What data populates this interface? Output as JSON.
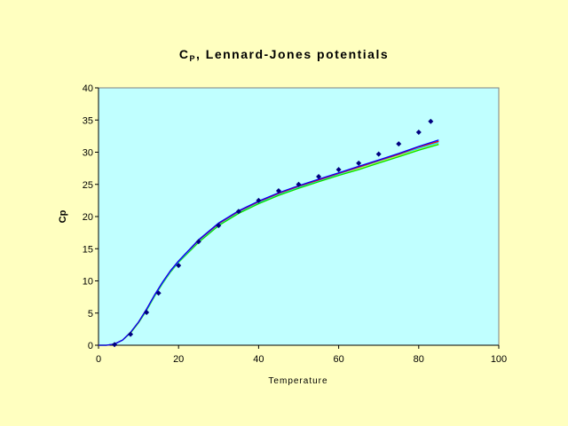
{
  "chart_data": {
    "type": "scatter",
    "title": "Cp, Lennard-Jones potentials",
    "title_main": "C",
    "title_sub": "P",
    "title_rest": ", Lennard-Jones potentials",
    "xlabel": "Temperature",
    "ylabel": "Cp",
    "xlim": [
      0,
      100
    ],
    "ylim": [
      0,
      40
    ],
    "xticks": [
      0,
      20,
      40,
      60,
      80,
      100
    ],
    "yticks": [
      0,
      5,
      10,
      15,
      20,
      25,
      30,
      35,
      40
    ],
    "grid": false,
    "colors": {
      "background": "#ffffc0",
      "plot": "#c0ffff",
      "points": "#000080"
    },
    "points": {
      "x": [
        4,
        8,
        12,
        15,
        20,
        25,
        30,
        35,
        40,
        45,
        50,
        55,
        60,
        65,
        70,
        75,
        80,
        83
      ],
      "y": [
        0.1,
        1.7,
        5.1,
        8.1,
        12.4,
        16.1,
        18.6,
        20.8,
        22.5,
        24.0,
        25.0,
        26.2,
        27.3,
        28.3,
        29.7,
        31.3,
        33.1,
        34.8
      ]
    },
    "curve_x": [
      0,
      2,
      4,
      6,
      8,
      10,
      12,
      14,
      16,
      18,
      20,
      25,
      30,
      35,
      40,
      45,
      50,
      55,
      60,
      65,
      70,
      75,
      80,
      85
    ],
    "series": [
      {
        "name": "yellow",
        "color": "#ffff00",
        "y": [
          0,
          0,
          0.2,
          0.8,
          1.9,
          3.5,
          5.4,
          7.6,
          9.6,
          11.4,
          12.9,
          16.0,
          18.6,
          20.5,
          22.0,
          23.3,
          24.4,
          25.4,
          26.4,
          27.4,
          28.4,
          29.4,
          30.4,
          31.3
        ]
      },
      {
        "name": "green",
        "color": "#00e000",
        "y": [
          0,
          0,
          0.2,
          0.8,
          1.9,
          3.5,
          5.4,
          7.6,
          9.6,
          11.4,
          12.9,
          16.0,
          18.6,
          20.5,
          22.0,
          23.3,
          24.4,
          25.4,
          26.4,
          27.3,
          28.3,
          29.3,
          30.3,
          31.2
        ]
      },
      {
        "name": "cyan",
        "color": "#00e0ff",
        "y": [
          0,
          0,
          0.2,
          0.8,
          2.0,
          3.6,
          5.5,
          7.7,
          9.7,
          11.5,
          13.0,
          16.2,
          18.8,
          20.7,
          22.2,
          23.5,
          24.6,
          25.6,
          26.6,
          27.6,
          28.6,
          29.6,
          30.6,
          31.5
        ]
      },
      {
        "name": "red",
        "color": "#ff0000",
        "y": [
          0,
          0,
          0.2,
          0.8,
          2.0,
          3.6,
          5.6,
          7.8,
          9.8,
          11.6,
          13.1,
          16.3,
          18.9,
          20.8,
          22.3,
          23.6,
          24.7,
          25.7,
          26.7,
          27.7,
          28.7,
          29.7,
          30.8,
          31.7
        ]
      },
      {
        "name": "blue",
        "color": "#0000ff",
        "y": [
          0,
          0,
          0.2,
          0.8,
          2.0,
          3.6,
          5.6,
          7.8,
          9.8,
          11.6,
          13.1,
          16.4,
          19.0,
          20.9,
          22.4,
          23.7,
          24.8,
          25.8,
          26.8,
          27.8,
          28.8,
          29.8,
          30.9,
          31.9
        ]
      }
    ]
  }
}
